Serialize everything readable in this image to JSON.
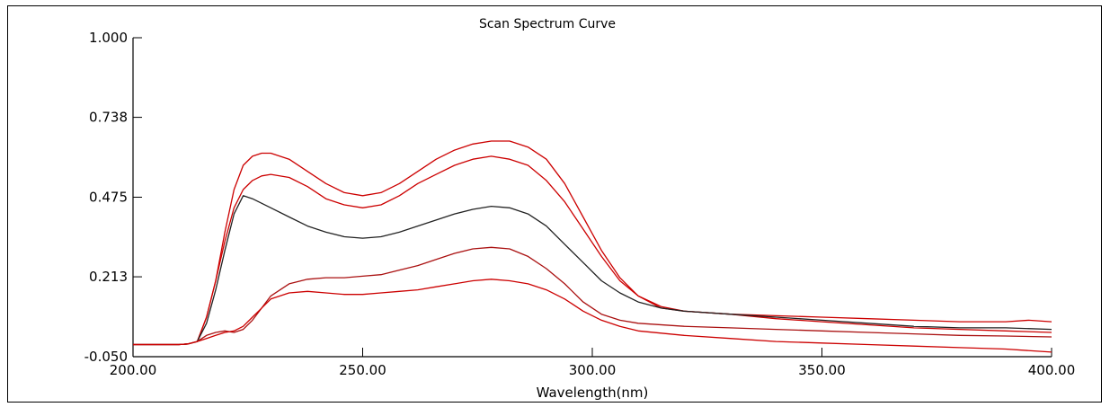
{
  "chart_data": {
    "type": "line",
    "title": "Scan Spectrum Curve",
    "xlabel": "Wavelength(nm)",
    "ylabel": "",
    "xlim": [
      200,
      400
    ],
    "ylim": [
      -0.05,
      1.0
    ],
    "x_ticks": [
      200,
      250,
      300,
      350,
      400
    ],
    "x_tick_labels": [
      "200.00",
      "250.00",
      "300.00",
      "350.00",
      "400.00"
    ],
    "y_ticks": [
      -0.05,
      0.213,
      0.475,
      0.738,
      1.0
    ],
    "y_tick_labels": [
      "-0.050",
      "0.213",
      "0.475",
      "0.738",
      "1.000"
    ],
    "grid": false,
    "legend": "none",
    "series": [
      {
        "color": "#cc0000",
        "points": [
          [
            200,
            -0.01
          ],
          [
            210,
            -0.01
          ],
          [
            212,
            -0.008
          ],
          [
            214,
            0.0
          ],
          [
            216,
            0.08
          ],
          [
            218,
            0.2
          ],
          [
            220,
            0.36
          ],
          [
            222,
            0.5
          ],
          [
            224,
            0.58
          ],
          [
            226,
            0.61
          ],
          [
            228,
            0.62
          ],
          [
            230,
            0.62
          ],
          [
            234,
            0.6
          ],
          [
            238,
            0.56
          ],
          [
            242,
            0.52
          ],
          [
            246,
            0.49
          ],
          [
            250,
            0.48
          ],
          [
            254,
            0.49
          ],
          [
            258,
            0.52
          ],
          [
            262,
            0.56
          ],
          [
            266,
            0.6
          ],
          [
            270,
            0.63
          ],
          [
            274,
            0.65
          ],
          [
            278,
            0.66
          ],
          [
            282,
            0.66
          ],
          [
            286,
            0.64
          ],
          [
            290,
            0.6
          ],
          [
            294,
            0.52
          ],
          [
            298,
            0.41
          ],
          [
            302,
            0.3
          ],
          [
            306,
            0.21
          ],
          [
            310,
            0.15
          ],
          [
            315,
            0.11
          ],
          [
            320,
            0.1
          ],
          [
            330,
            0.09
          ],
          [
            340,
            0.085
          ],
          [
            350,
            0.08
          ],
          [
            360,
            0.075
          ],
          [
            370,
            0.07
          ],
          [
            380,
            0.065
          ],
          [
            390,
            0.065
          ],
          [
            395,
            0.07
          ],
          [
            400,
            0.065
          ]
        ]
      },
      {
        "color": "#cc0000",
        "points": [
          [
            200,
            -0.01
          ],
          [
            210,
            -0.01
          ],
          [
            212,
            -0.008
          ],
          [
            214,
            0.0
          ],
          [
            216,
            0.08
          ],
          [
            218,
            0.2
          ],
          [
            220,
            0.33
          ],
          [
            222,
            0.44
          ],
          [
            224,
            0.5
          ],
          [
            226,
            0.53
          ],
          [
            228,
            0.545
          ],
          [
            230,
            0.55
          ],
          [
            234,
            0.54
          ],
          [
            238,
            0.51
          ],
          [
            242,
            0.47
          ],
          [
            246,
            0.45
          ],
          [
            250,
            0.44
          ],
          [
            254,
            0.45
          ],
          [
            258,
            0.48
          ],
          [
            262,
            0.52
          ],
          [
            266,
            0.55
          ],
          [
            270,
            0.58
          ],
          [
            274,
            0.6
          ],
          [
            278,
            0.61
          ],
          [
            282,
            0.6
          ],
          [
            286,
            0.58
          ],
          [
            290,
            0.53
          ],
          [
            294,
            0.46
          ],
          [
            298,
            0.37
          ],
          [
            302,
            0.28
          ],
          [
            306,
            0.2
          ],
          [
            310,
            0.15
          ],
          [
            315,
            0.115
          ],
          [
            320,
            0.1
          ],
          [
            330,
            0.09
          ],
          [
            340,
            0.075
          ],
          [
            350,
            0.065
          ],
          [
            360,
            0.055
          ],
          [
            370,
            0.045
          ],
          [
            380,
            0.04
          ],
          [
            390,
            0.035
          ],
          [
            400,
            0.03
          ]
        ]
      },
      {
        "color": "#222222",
        "points": [
          [
            200,
            -0.01
          ],
          [
            210,
            -0.01
          ],
          [
            212,
            -0.008
          ],
          [
            214,
            0.0
          ],
          [
            216,
            0.06
          ],
          [
            218,
            0.17
          ],
          [
            220,
            0.3
          ],
          [
            222,
            0.42
          ],
          [
            224,
            0.48
          ],
          [
            226,
            0.47
          ],
          [
            230,
            0.44
          ],
          [
            234,
            0.41
          ],
          [
            238,
            0.38
          ],
          [
            242,
            0.36
          ],
          [
            246,
            0.345
          ],
          [
            250,
            0.34
          ],
          [
            254,
            0.345
          ],
          [
            258,
            0.36
          ],
          [
            262,
            0.38
          ],
          [
            266,
            0.4
          ],
          [
            270,
            0.42
          ],
          [
            274,
            0.435
          ],
          [
            278,
            0.445
          ],
          [
            282,
            0.44
          ],
          [
            286,
            0.42
          ],
          [
            290,
            0.38
          ],
          [
            294,
            0.32
          ],
          [
            298,
            0.26
          ],
          [
            302,
            0.2
          ],
          [
            306,
            0.16
          ],
          [
            310,
            0.13
          ],
          [
            315,
            0.11
          ],
          [
            320,
            0.1
          ],
          [
            330,
            0.09
          ],
          [
            340,
            0.08
          ],
          [
            350,
            0.07
          ],
          [
            360,
            0.06
          ],
          [
            370,
            0.05
          ],
          [
            380,
            0.045
          ],
          [
            390,
            0.045
          ],
          [
            400,
            0.04
          ]
        ]
      },
      {
        "color": "#aa1111",
        "points": [
          [
            200,
            -0.01
          ],
          [
            210,
            -0.01
          ],
          [
            212,
            -0.008
          ],
          [
            214,
            0.0
          ],
          [
            216,
            0.02
          ],
          [
            218,
            0.03
          ],
          [
            220,
            0.035
          ],
          [
            222,
            0.03
          ],
          [
            224,
            0.04
          ],
          [
            226,
            0.07
          ],
          [
            228,
            0.11
          ],
          [
            230,
            0.15
          ],
          [
            234,
            0.19
          ],
          [
            238,
            0.205
          ],
          [
            242,
            0.21
          ],
          [
            246,
            0.21
          ],
          [
            250,
            0.215
          ],
          [
            254,
            0.22
          ],
          [
            258,
            0.235
          ],
          [
            262,
            0.25
          ],
          [
            266,
            0.27
          ],
          [
            270,
            0.29
          ],
          [
            274,
            0.305
          ],
          [
            278,
            0.31
          ],
          [
            282,
            0.305
          ],
          [
            286,
            0.28
          ],
          [
            290,
            0.24
          ],
          [
            294,
            0.19
          ],
          [
            298,
            0.13
          ],
          [
            302,
            0.09
          ],
          [
            306,
            0.07
          ],
          [
            310,
            0.06
          ],
          [
            320,
            0.05
          ],
          [
            330,
            0.045
          ],
          [
            340,
            0.04
          ],
          [
            350,
            0.035
          ],
          [
            360,
            0.03
          ],
          [
            370,
            0.025
          ],
          [
            380,
            0.02
          ],
          [
            390,
            0.018
          ],
          [
            400,
            0.015
          ]
        ]
      },
      {
        "color": "#cc0000",
        "points": [
          [
            200,
            -0.01
          ],
          [
            210,
            -0.01
          ],
          [
            212,
            -0.008
          ],
          [
            214,
            0.0
          ],
          [
            216,
            0.01
          ],
          [
            218,
            0.02
          ],
          [
            220,
            0.03
          ],
          [
            222,
            0.035
          ],
          [
            224,
            0.05
          ],
          [
            226,
            0.08
          ],
          [
            228,
            0.11
          ],
          [
            230,
            0.14
          ],
          [
            234,
            0.16
          ],
          [
            238,
            0.165
          ],
          [
            242,
            0.16
          ],
          [
            246,
            0.155
          ],
          [
            250,
            0.155
          ],
          [
            254,
            0.16
          ],
          [
            258,
            0.165
          ],
          [
            262,
            0.17
          ],
          [
            266,
            0.18
          ],
          [
            270,
            0.19
          ],
          [
            274,
            0.2
          ],
          [
            278,
            0.205
          ],
          [
            282,
            0.2
          ],
          [
            286,
            0.19
          ],
          [
            290,
            0.17
          ],
          [
            294,
            0.14
          ],
          [
            298,
            0.1
          ],
          [
            302,
            0.07
          ],
          [
            306,
            0.05
          ],
          [
            310,
            0.035
          ],
          [
            320,
            0.02
          ],
          [
            330,
            0.01
          ],
          [
            340,
            0.0
          ],
          [
            350,
            -0.005
          ],
          [
            360,
            -0.01
          ],
          [
            370,
            -0.015
          ],
          [
            380,
            -0.02
          ],
          [
            390,
            -0.025
          ],
          [
            400,
            -0.035
          ]
        ]
      }
    ]
  }
}
